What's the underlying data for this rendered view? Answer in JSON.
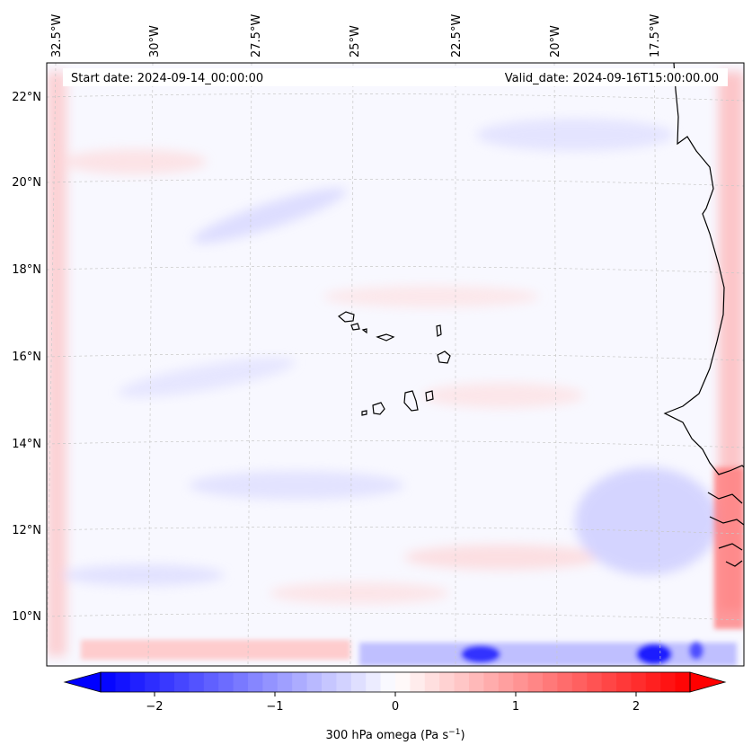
{
  "map": {
    "start_label": "Start date: 2024-09-14_00:00:00",
    "valid_label": "Valid_date: 2024-09-16T15:00:00.00",
    "lon_labels": [
      "32.5°W",
      "30°W",
      "27.5°W",
      "25°W",
      "22.5°W",
      "20°W",
      "17.5°W"
    ],
    "lat_labels": [
      "22°N",
      "20°N",
      "18°N",
      "16°N",
      "14°N",
      "12°N",
      "10°N"
    ],
    "background_color": "#f8f8ff",
    "coastline_color": "#000000"
  },
  "colorbar": {
    "label": "300 hPa omega (Pa s",
    "label_exponent": "−1",
    "label_close": ")",
    "ticks": [
      "−2",
      "−1",
      "0",
      "1",
      "2"
    ],
    "min_color": "#0000ff",
    "mid_color": "#ffffff",
    "max_color": "#ff0000"
  }
}
